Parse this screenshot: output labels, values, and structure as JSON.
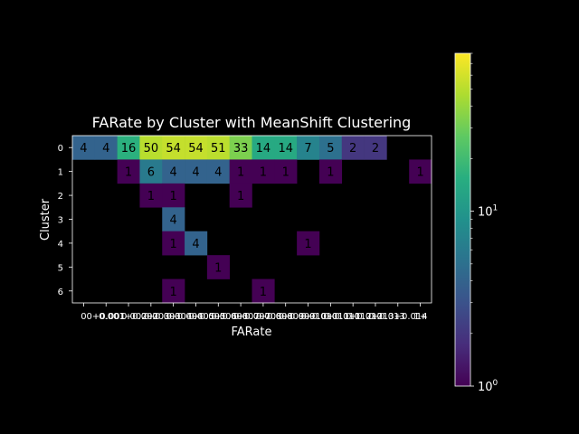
{
  "chart_data": {
    "type": "heatmap",
    "title": "FARate by Cluster with MeanShift Clustering",
    "xlabel": "FARate",
    "ylabel": "Cluster",
    "x_categories": [
      "0",
      "0+0.001",
      "0.001+0.002",
      "0.002+0.003",
      "0.003+0.004",
      "0.004+0.005",
      "0.005+0.006",
      "0.006+0.007",
      "0.007+0.008",
      "0.008+0.009",
      "0.009+0.010",
      "0.010+0.011",
      "0.011+0.012",
      "0.012+0.013",
      "0.013+0.014",
      "1+"
    ],
    "y_categories": [
      "0",
      "1",
      "2",
      "3",
      "4",
      "5",
      "6"
    ],
    "values": [
      [
        4,
        4,
        16,
        50,
        54,
        54,
        51,
        33,
        14,
        14,
        7,
        5,
        2,
        2,
        null,
        null
      ],
      [
        null,
        null,
        1,
        6,
        4,
        4,
        4,
        1,
        1,
        1,
        null,
        1,
        null,
        null,
        null,
        1
      ],
      [
        null,
        null,
        null,
        1,
        1,
        null,
        null,
        1,
        null,
        null,
        null,
        null,
        null,
        null,
        null,
        null
      ],
      [
        null,
        null,
        null,
        null,
        4,
        null,
        null,
        null,
        null,
        null,
        null,
        null,
        null,
        null,
        null,
        null
      ],
      [
        null,
        null,
        null,
        null,
        1,
        4,
        null,
        null,
        null,
        null,
        1,
        null,
        null,
        null,
        null,
        null
      ],
      [
        null,
        null,
        null,
        null,
        null,
        null,
        1,
        null,
        null,
        null,
        null,
        null,
        null,
        null,
        null,
        null
      ],
      [
        null,
        null,
        null,
        null,
        1,
        null,
        null,
        null,
        1,
        null,
        null,
        null,
        null,
        null,
        null,
        null
      ]
    ],
    "colormap": "viridis",
    "colorbar": {
      "scale": "log",
      "range": [
        1,
        80
      ],
      "tick_labels": [
        {
          "base": "10",
          "exp": "0",
          "value": 1
        },
        {
          "base": "10",
          "exp": "1",
          "value": 10
        }
      ]
    },
    "grid": false,
    "background": "#000000"
  }
}
